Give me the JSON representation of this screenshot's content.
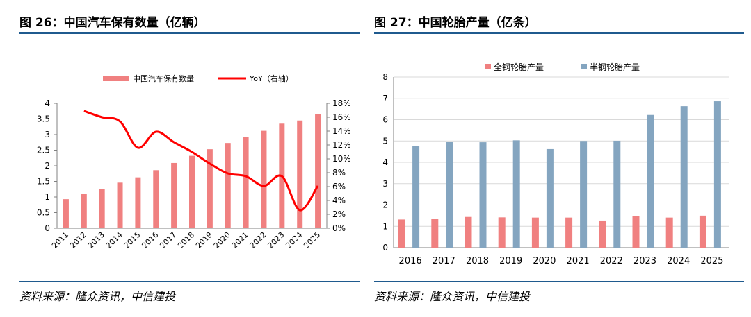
{
  "left_panel": {
    "title": "图 26：中国汽车保有数量（亿辆）",
    "source": "资料来源：隆众资讯，中信建投"
  },
  "right_panel": {
    "title": "图 27：中国轮胎产量（亿条）",
    "source": "资料来源：隆众资讯，中信建投"
  },
  "colors": {
    "accent_rule": "#1f5a8e",
    "bar_red": "#f08080",
    "line_red": "#ff0000",
    "bar_blue": "#84a5c0"
  },
  "chart_data": [
    {
      "type": "bar",
      "title": "中国汽车保有数量（亿辆）",
      "categories": [
        "2011",
        "2012",
        "2013",
        "2014",
        "2015",
        "2016",
        "2017",
        "2018",
        "2019",
        "2020",
        "2021",
        "2022",
        "2023",
        "2024",
        "2025"
      ],
      "series": [
        {
          "name": "中国汽车保有数量",
          "kind": "bar",
          "axis": "left",
          "values": [
            0.93,
            1.09,
            1.26,
            1.46,
            1.63,
            1.86,
            2.09,
            2.32,
            2.53,
            2.73,
            2.93,
            3.12,
            3.35,
            3.45,
            3.66
          ]
        },
        {
          "name": "YoY（右轴）",
          "kind": "line",
          "axis": "right",
          "values": [
            null,
            16.9,
            16.0,
            15.4,
            11.6,
            13.9,
            12.4,
            11.0,
            9.3,
            7.9,
            7.5,
            6.1,
            7.5,
            2.6,
            6.1
          ]
        }
      ],
      "y_left": {
        "min": 0,
        "max": 4,
        "ticks": [
          "0",
          "0.5",
          "1",
          "1.5",
          "2",
          "2.5",
          "3",
          "3.5",
          "4"
        ]
      },
      "y_right": {
        "min": 0,
        "max": 18,
        "ticks": [
          "0%",
          "2%",
          "4%",
          "6%",
          "8%",
          "10%",
          "12%",
          "14%",
          "16%",
          "18%"
        ]
      },
      "legend": [
        "中国汽车保有数量",
        "YoY（右轴）"
      ],
      "legend_position": "top",
      "grid": false
    },
    {
      "type": "bar",
      "title": "中国轮胎产量（亿条）",
      "categories": [
        "2016",
        "2017",
        "2018",
        "2019",
        "2020",
        "2021",
        "2022",
        "2023",
        "2024",
        "2025"
      ],
      "series": [
        {
          "name": "全钢轮胎产量",
          "values": [
            1.32,
            1.36,
            1.44,
            1.42,
            1.41,
            1.41,
            1.27,
            1.47,
            1.41,
            1.5
          ]
        },
        {
          "name": "半钢轮胎产量",
          "values": [
            4.78,
            4.97,
            4.94,
            5.03,
            4.62,
            5.0,
            5.01,
            6.22,
            6.63,
            6.86
          ]
        }
      ],
      "y": {
        "min": 0,
        "max": 8,
        "ticks": [
          "0",
          "1",
          "2",
          "3",
          "4",
          "5",
          "6",
          "7",
          "8"
        ]
      },
      "legend": [
        "全钢轮胎产量",
        "半钢轮胎产量"
      ],
      "legend_position": "top",
      "grid": true
    }
  ]
}
